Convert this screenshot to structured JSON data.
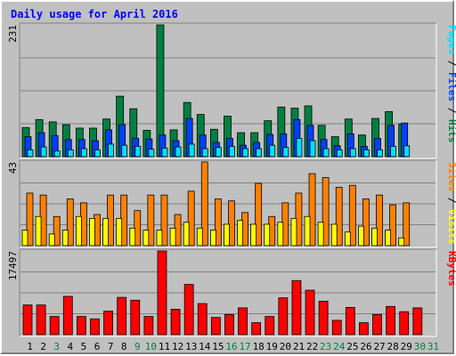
{
  "chart_data": {
    "title": "Daily usage for April 2016",
    "type": "bar",
    "x": [
      "1",
      "2",
      "3",
      "4",
      "5",
      "6",
      "7",
      "8",
      "9",
      "10",
      "11",
      "12",
      "13",
      "14",
      "15",
      "16",
      "17",
      "18",
      "19",
      "20",
      "21",
      "22",
      "23",
      "24",
      "25",
      "26",
      "27",
      "28",
      "29",
      "30",
      "31"
    ],
    "weekend_days": [
      3,
      9,
      10,
      16,
      17,
      23,
      24,
      30,
      31
    ],
    "colors": {
      "title": "#0000ff",
      "hits": "#008040",
      "files": "#0040ff",
      "pages": "#00e0ff",
      "visits": "#ffff00",
      "sites": "#ff8000",
      "kbytes": "#ff0000",
      "weekday_label": "#000000",
      "weekend_label": "#008040",
      "plot_bg": "#c0c0c0",
      "grid": "#808080"
    },
    "panels": [
      {
        "id": "hits_files_pages",
        "max_label": "231",
        "ymax": 231,
        "right_label": [
          {
            "text": "Pages",
            "color": "#00e0ff"
          },
          {
            "text": " / ",
            "color": "#000000"
          },
          {
            "text": "Files",
            "color": "#0040ff"
          },
          {
            "text": " / ",
            "color": "#000000"
          },
          {
            "text": "Hits",
            "color": "#008040"
          }
        ],
        "series": [
          {
            "name": "Hits",
            "color": "#008040",
            "values": [
              51,
              65,
              61,
              56,
              50,
              50,
              66,
              106,
              84,
              46,
              231,
              47,
              95,
              74,
              48,
              71,
              42,
              42,
              63,
              87,
              85,
              89,
              55,
              35,
              66,
              38,
              67,
              79,
              57,
              0,
              0
            ]
          },
          {
            "name": "Files",
            "color": "#0040ff",
            "values": [
              35,
              42,
              37,
              30,
              30,
              28,
              47,
              56,
              32,
              31,
              38,
              28,
              67,
              38,
              25,
              32,
              20,
              25,
              39,
              40,
              65,
              55,
              30,
              19,
              40,
              18,
              32,
              55,
              59,
              0,
              0
            ]
          },
          {
            "name": "Pages",
            "color": "#00e0ff",
            "values": [
              12,
              17,
              10,
              12,
              14,
              12,
              22,
              20,
              18,
              13,
              15,
              17,
              22,
              14,
              16,
              18,
              14,
              14,
              20,
              16,
              32,
              28,
              14,
              12,
              14,
              12,
              12,
              18,
              19,
              0,
              0
            ]
          }
        ]
      },
      {
        "id": "visits_sites",
        "max_label": "43",
        "ymax": 43,
        "right_label": [
          {
            "text": "Sites",
            "color": "#ff8000"
          },
          {
            "text": " / ",
            "color": "#000000"
          },
          {
            "text": "Visits",
            "color": "#ffff00"
          }
        ],
        "series": [
          {
            "name": "Sites",
            "color": "#ff8000",
            "values": [
              27,
              26,
              15,
              24,
              22,
              16,
              26,
              26,
              18,
              26,
              26,
              16,
              28,
              43,
              24,
              23,
              17,
              32,
              15,
              22,
              27,
              37,
              35,
              30,
              31,
              24,
              26,
              21,
              22,
              0,
              0
            ]
          },
          {
            "name": "Visits",
            "color": "#ffff00",
            "values": [
              8,
              15,
              6,
              8,
              15,
              14,
              14,
              14,
              9,
              8,
              8,
              9,
              12,
              9,
              8,
              11,
              13,
              11,
              11,
              12,
              14,
              15,
              12,
              11,
              7,
              10,
              9,
              8,
              4,
              0,
              0
            ]
          }
        ]
      },
      {
        "id": "kbytes",
        "max_label": "17497",
        "ymax": 17497,
        "right_label": [
          {
            "text": "KBytes",
            "color": "#ff0000"
          }
        ],
        "series": [
          {
            "name": "KBytes",
            "color": "#ff0000",
            "values": [
              6200,
              6200,
              3800,
              8000,
              3800,
              3300,
              4900,
              7800,
              7200,
              3800,
              17497,
              5300,
              10500,
              6500,
              3600,
              4200,
              5600,
              2500,
              3800,
              7700,
              11300,
              9300,
              7000,
              3000,
              5700,
              2500,
              4200,
              5900,
              4800,
              5600,
              0
            ]
          }
        ]
      }
    ]
  }
}
